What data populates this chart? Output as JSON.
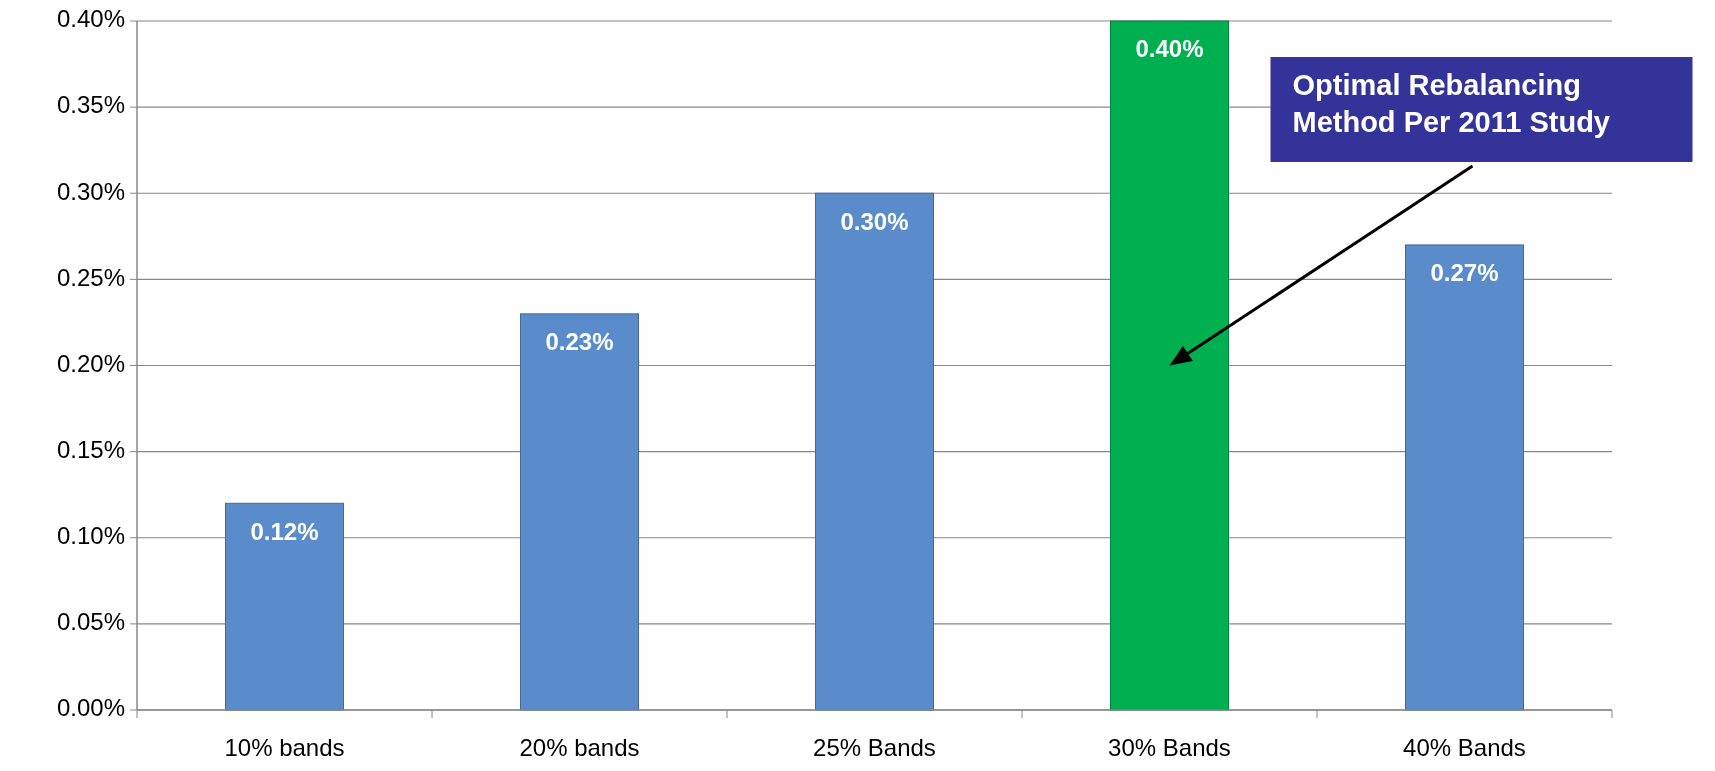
{
  "chart_data": {
    "type": "bar",
    "categories": [
      "10% bands",
      "20% bands",
      "25% Bands",
      "30% Bands",
      "40% Bands"
    ],
    "values": [
      0.12,
      0.23,
      0.3,
      0.4,
      0.27
    ],
    "colors": [
      "#5a8ccb",
      "#5a8ccb",
      "#5a8ccb",
      "#00b050",
      "#5a8ccb"
    ],
    "value_labels": [
      "0.12%",
      "0.23%",
      "0.30%",
      "0.40%",
      "0.27%"
    ],
    "ylim": [
      0,
      0.4
    ],
    "yticks": [
      {
        "value": 0,
        "label": "0.00%"
      },
      {
        "value": 0.05,
        "label": "0.05%"
      },
      {
        "value": 0.1,
        "label": "0.10%"
      },
      {
        "value": 0.15,
        "label": "0.15%"
      },
      {
        "value": 0.2,
        "label": "0.20%"
      },
      {
        "value": 0.25,
        "label": "0.25%"
      },
      {
        "value": 0.3,
        "label": "0.30%"
      },
      {
        "value": 0.35,
        "label": "0.35%"
      },
      {
        "value": 0.4,
        "label": "0.40%"
      }
    ],
    "grid": "y",
    "annotations": [
      "Optimal Rebalancing Method Per 2011 Study"
    ]
  }
}
